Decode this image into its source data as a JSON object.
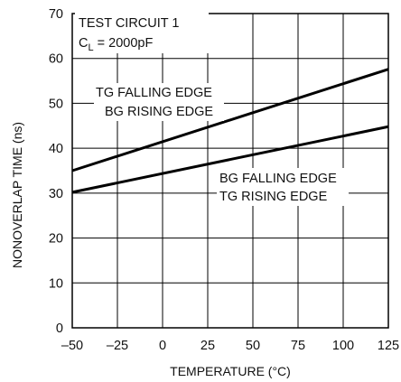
{
  "chart_data": {
    "type": "line",
    "xlabel": "TEMPERATURE (°C)",
    "ylabel": "NONOVERLAP TIME (ns)",
    "xlim": [
      -50,
      125
    ],
    "ylim": [
      0,
      70
    ],
    "x_ticks": [
      -50,
      -25,
      0,
      25,
      50,
      75,
      100,
      125
    ],
    "y_ticks": [
      0,
      10,
      20,
      30,
      40,
      50,
      60,
      70
    ],
    "x_tick_labels": [
      "–50",
      "–25",
      "0",
      "25",
      "50",
      "75",
      "100",
      "125"
    ],
    "y_tick_labels": [
      "0",
      "10",
      "20",
      "30",
      "40",
      "50",
      "60",
      "70"
    ],
    "grid": true,
    "series": [
      {
        "x": [
          -50,
          125
        ],
        "y": [
          35,
          57.6
        ]
      },
      {
        "x": [
          -50,
          125
        ],
        "y": [
          30.2,
          44.8
        ]
      }
    ],
    "annotations": {
      "test_circuit": "TEST CIRCUIT 1",
      "load_prefix": "C",
      "load_sub": "L",
      "load_suffix": " = 2000pF",
      "upper_line1": "TG FALLING EDGE",
      "upper_line2": "BG RISING EDGE",
      "lower_line1": "BG FALLING EDGE",
      "lower_line2": "TG RISING EDGE"
    }
  }
}
